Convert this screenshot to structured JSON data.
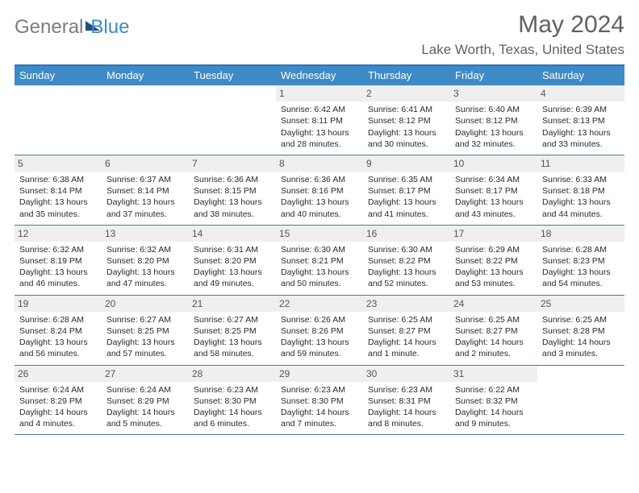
{
  "logo": {
    "part1": "General",
    "part2": "Blue"
  },
  "header": {
    "month_title": "May 2024",
    "location": "Lake Worth, Texas, United States"
  },
  "colors": {
    "header_bar": "#3d8ac7",
    "rule": "#2e75b6",
    "week_rule": "#4a7aa8",
    "daynum_bg": "#efefef",
    "text": "#2a2a2a",
    "muted": "#606060"
  },
  "days_of_week": [
    "Sunday",
    "Monday",
    "Tuesday",
    "Wednesday",
    "Thursday",
    "Friday",
    "Saturday"
  ],
  "weeks": [
    [
      {
        "n": "",
        "sr": "",
        "ss": "",
        "dl": ""
      },
      {
        "n": "",
        "sr": "",
        "ss": "",
        "dl": ""
      },
      {
        "n": "",
        "sr": "",
        "ss": "",
        "dl": ""
      },
      {
        "n": "1",
        "sr": "Sunrise: 6:42 AM",
        "ss": "Sunset: 8:11 PM",
        "dl": "Daylight: 13 hours and 28 minutes."
      },
      {
        "n": "2",
        "sr": "Sunrise: 6:41 AM",
        "ss": "Sunset: 8:12 PM",
        "dl": "Daylight: 13 hours and 30 minutes."
      },
      {
        "n": "3",
        "sr": "Sunrise: 6:40 AM",
        "ss": "Sunset: 8:12 PM",
        "dl": "Daylight: 13 hours and 32 minutes."
      },
      {
        "n": "4",
        "sr": "Sunrise: 6:39 AM",
        "ss": "Sunset: 8:13 PM",
        "dl": "Daylight: 13 hours and 33 minutes."
      }
    ],
    [
      {
        "n": "5",
        "sr": "Sunrise: 6:38 AM",
        "ss": "Sunset: 8:14 PM",
        "dl": "Daylight: 13 hours and 35 minutes."
      },
      {
        "n": "6",
        "sr": "Sunrise: 6:37 AM",
        "ss": "Sunset: 8:14 PM",
        "dl": "Daylight: 13 hours and 37 minutes."
      },
      {
        "n": "7",
        "sr": "Sunrise: 6:36 AM",
        "ss": "Sunset: 8:15 PM",
        "dl": "Daylight: 13 hours and 38 minutes."
      },
      {
        "n": "8",
        "sr": "Sunrise: 6:36 AM",
        "ss": "Sunset: 8:16 PM",
        "dl": "Daylight: 13 hours and 40 minutes."
      },
      {
        "n": "9",
        "sr": "Sunrise: 6:35 AM",
        "ss": "Sunset: 8:17 PM",
        "dl": "Daylight: 13 hours and 41 minutes."
      },
      {
        "n": "10",
        "sr": "Sunrise: 6:34 AM",
        "ss": "Sunset: 8:17 PM",
        "dl": "Daylight: 13 hours and 43 minutes."
      },
      {
        "n": "11",
        "sr": "Sunrise: 6:33 AM",
        "ss": "Sunset: 8:18 PM",
        "dl": "Daylight: 13 hours and 44 minutes."
      }
    ],
    [
      {
        "n": "12",
        "sr": "Sunrise: 6:32 AM",
        "ss": "Sunset: 8:19 PM",
        "dl": "Daylight: 13 hours and 46 minutes."
      },
      {
        "n": "13",
        "sr": "Sunrise: 6:32 AM",
        "ss": "Sunset: 8:20 PM",
        "dl": "Daylight: 13 hours and 47 minutes."
      },
      {
        "n": "14",
        "sr": "Sunrise: 6:31 AM",
        "ss": "Sunset: 8:20 PM",
        "dl": "Daylight: 13 hours and 49 minutes."
      },
      {
        "n": "15",
        "sr": "Sunrise: 6:30 AM",
        "ss": "Sunset: 8:21 PM",
        "dl": "Daylight: 13 hours and 50 minutes."
      },
      {
        "n": "16",
        "sr": "Sunrise: 6:30 AM",
        "ss": "Sunset: 8:22 PM",
        "dl": "Daylight: 13 hours and 52 minutes."
      },
      {
        "n": "17",
        "sr": "Sunrise: 6:29 AM",
        "ss": "Sunset: 8:22 PM",
        "dl": "Daylight: 13 hours and 53 minutes."
      },
      {
        "n": "18",
        "sr": "Sunrise: 6:28 AM",
        "ss": "Sunset: 8:23 PM",
        "dl": "Daylight: 13 hours and 54 minutes."
      }
    ],
    [
      {
        "n": "19",
        "sr": "Sunrise: 6:28 AM",
        "ss": "Sunset: 8:24 PM",
        "dl": "Daylight: 13 hours and 56 minutes."
      },
      {
        "n": "20",
        "sr": "Sunrise: 6:27 AM",
        "ss": "Sunset: 8:25 PM",
        "dl": "Daylight: 13 hours and 57 minutes."
      },
      {
        "n": "21",
        "sr": "Sunrise: 6:27 AM",
        "ss": "Sunset: 8:25 PM",
        "dl": "Daylight: 13 hours and 58 minutes."
      },
      {
        "n": "22",
        "sr": "Sunrise: 6:26 AM",
        "ss": "Sunset: 8:26 PM",
        "dl": "Daylight: 13 hours and 59 minutes."
      },
      {
        "n": "23",
        "sr": "Sunrise: 6:25 AM",
        "ss": "Sunset: 8:27 PM",
        "dl": "Daylight: 14 hours and 1 minute."
      },
      {
        "n": "24",
        "sr": "Sunrise: 6:25 AM",
        "ss": "Sunset: 8:27 PM",
        "dl": "Daylight: 14 hours and 2 minutes."
      },
      {
        "n": "25",
        "sr": "Sunrise: 6:25 AM",
        "ss": "Sunset: 8:28 PM",
        "dl": "Daylight: 14 hours and 3 minutes."
      }
    ],
    [
      {
        "n": "26",
        "sr": "Sunrise: 6:24 AM",
        "ss": "Sunset: 8:29 PM",
        "dl": "Daylight: 14 hours and 4 minutes."
      },
      {
        "n": "27",
        "sr": "Sunrise: 6:24 AM",
        "ss": "Sunset: 8:29 PM",
        "dl": "Daylight: 14 hours and 5 minutes."
      },
      {
        "n": "28",
        "sr": "Sunrise: 6:23 AM",
        "ss": "Sunset: 8:30 PM",
        "dl": "Daylight: 14 hours and 6 minutes."
      },
      {
        "n": "29",
        "sr": "Sunrise: 6:23 AM",
        "ss": "Sunset: 8:30 PM",
        "dl": "Daylight: 14 hours and 7 minutes."
      },
      {
        "n": "30",
        "sr": "Sunrise: 6:23 AM",
        "ss": "Sunset: 8:31 PM",
        "dl": "Daylight: 14 hours and 8 minutes."
      },
      {
        "n": "31",
        "sr": "Sunrise: 6:22 AM",
        "ss": "Sunset: 8:32 PM",
        "dl": "Daylight: 14 hours and 9 minutes."
      },
      {
        "n": "",
        "sr": "",
        "ss": "",
        "dl": ""
      }
    ]
  ]
}
